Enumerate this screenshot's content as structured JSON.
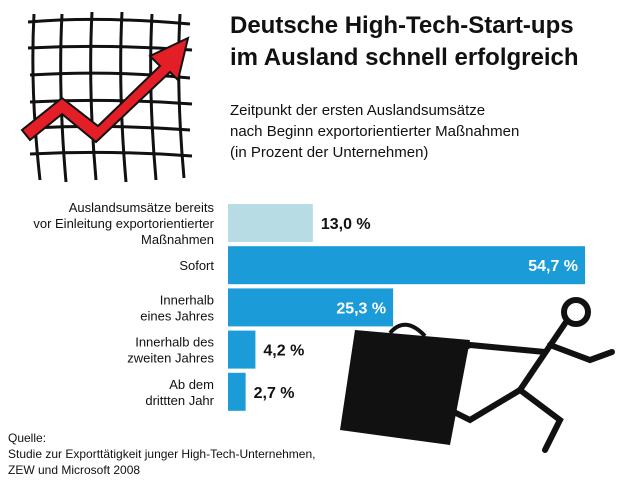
{
  "chart_data": {
    "type": "bar",
    "title": [
      "Deutsche High-Tech-Start-ups",
      "im Ausland schnell erfolgreich"
    ],
    "subtitle": [
      "Zeitpunkt der ersten Auslandsumsätze",
      "nach Beginn exportorientierter Maßnahmen",
      "(in Prozent der Unternehmen)"
    ],
    "categories": [
      [
        "Auslandsumsätze bereits",
        "vor Einleitung exportorientierter",
        "Maßnahmen"
      ],
      [
        "Sofort"
      ],
      [
        "Innerhalb",
        "eines Jahres"
      ],
      [
        "Innerhalb des",
        "zweiten Jahres"
      ],
      [
        "Ab dem",
        "drittten Jahr"
      ]
    ],
    "values": [
      13.0,
      54.7,
      25.3,
      4.2,
      2.7
    ],
    "value_labels": [
      "13,0 %",
      "54,7 %",
      "25,3 %",
      "4,2 %",
      "2,7 %"
    ],
    "colors": [
      "#b7dce4",
      "#1b9bd7",
      "#1b9bd7",
      "#1b9bd7",
      "#1b9bd7"
    ],
    "source": [
      "Quelle:",
      "Studie zur Exporttätigkeit junger High-Tech-Unternehmen,",
      "ZEW und Microsoft 2008"
    ]
  }
}
